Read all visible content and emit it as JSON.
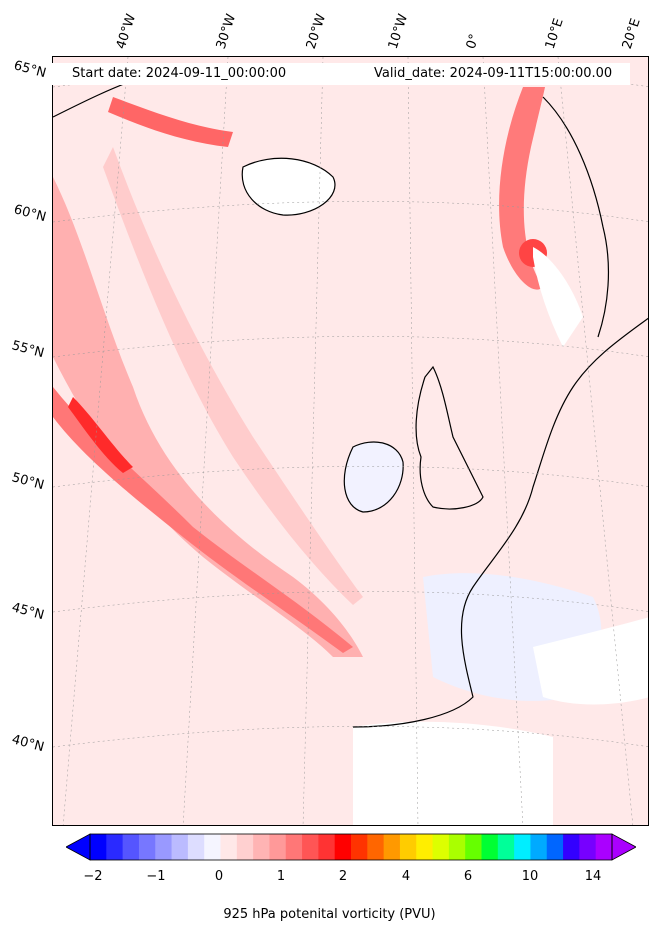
{
  "header": {
    "start_date": "Start date: 2024-09-11_00:00:00",
    "valid_date": "Valid_date: 2024-09-11T15:00:00.00"
  },
  "longitude_labels": [
    "40°W",
    "30°W",
    "20°W",
    "10°W",
    "0°",
    "10°E",
    "20°E"
  ],
  "latitude_labels": [
    "65°N",
    "60°N",
    "55°N",
    "50°N",
    "45°N",
    "40°N"
  ],
  "colorbar": {
    "ticks": [
      "−2",
      "−1",
      "0",
      "1",
      "2",
      "4",
      "6",
      "10",
      "14"
    ],
    "label": "925 hPa potenital vorticity (PVU)",
    "colors": [
      "#0000ff",
      "#2a2aff",
      "#5555ff",
      "#7777ff",
      "#9999ff",
      "#bbbbff",
      "#ddddff",
      "#f5f5ff",
      "#ffe8e8",
      "#ffd0d0",
      "#ffb4b4",
      "#ff9999",
      "#ff7777",
      "#ff5555",
      "#ff3333",
      "#ff0000",
      "#ff3300",
      "#ff6600",
      "#ff9900",
      "#ffcc00",
      "#ffee00",
      "#ddff00",
      "#aaff00",
      "#66ff00",
      "#00ff33",
      "#00ff99",
      "#00eeff",
      "#00aaff",
      "#0066ff",
      "#3300ff",
      "#7700ff",
      "#aa00ff"
    ],
    "extend": "both"
  }
}
